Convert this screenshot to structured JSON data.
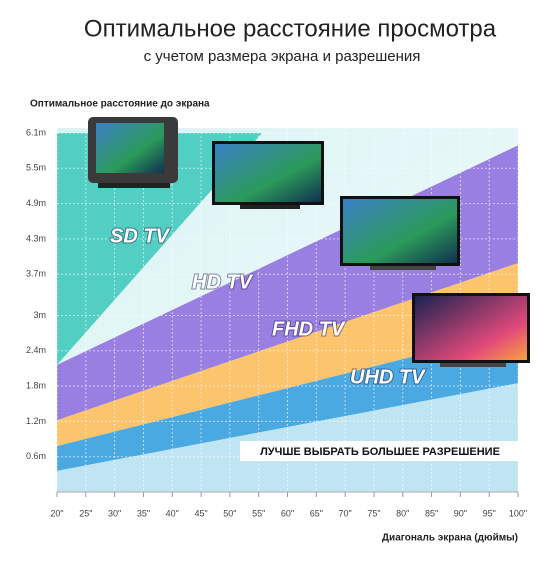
{
  "chart_data": {
    "type": "band",
    "title": "Оптимальное расстояние просмотра",
    "subtitle": "с учетом размера экрана и разрешения",
    "y_label": "Оптимальное расстояние до экрана",
    "x_label": "Диагональ экрана (дюймы)",
    "annotation": "ЛУЧШЕ  ВЫБРАТЬ БОЛЬШЕЕ РАЗРЕШЕНИЕ",
    "xlim": [
      20,
      100
    ],
    "ylim": [
      0,
      6.1
    ],
    "xticks": [
      {
        "value": 20,
        "label": "20\""
      },
      {
        "value": 25,
        "label": "25\""
      },
      {
        "value": 30,
        "label": "30\""
      },
      {
        "value": 35,
        "label": "35\""
      },
      {
        "value": 40,
        "label": "40\""
      },
      {
        "value": 45,
        "label": "45\""
      },
      {
        "value": 50,
        "label": "50\""
      },
      {
        "value": 55,
        "label": "55\""
      },
      {
        "value": 60,
        "label": "60\""
      },
      {
        "value": 65,
        "label": "65\""
      },
      {
        "value": 70,
        "label": "70\""
      },
      {
        "value": 75,
        "label": "75\""
      },
      {
        "value": 80,
        "label": "80\""
      },
      {
        "value": 85,
        "label": "85\""
      },
      {
        "value": 90,
        "label": "90\""
      },
      {
        "value": 95,
        "label": "95\""
      },
      {
        "value": 100,
        "label": "100\""
      }
    ],
    "yticks": [
      {
        "value": 0.6,
        "label": "0.6m"
      },
      {
        "value": 1.2,
        "label": "1.2m"
      },
      {
        "value": 1.8,
        "label": "1.8m"
      },
      {
        "value": 2.4,
        "label": "2.4m"
      },
      {
        "value": 3,
        "label": "3m"
      },
      {
        "value": 3.7,
        "label": "3.7m"
      },
      {
        "value": 4.3,
        "label": "4.3m"
      },
      {
        "value": 4.9,
        "label": "4.9m"
      },
      {
        "value": 5.5,
        "label": "5.5m"
      },
      {
        "value": 6.1,
        "label": "6.1m"
      }
    ],
    "series": [
      {
        "name": "SD TV",
        "color": "#52cfc2",
        "x": [
          20,
          55.6
        ],
        "lower": [
          2.16,
          6.1
        ]
      },
      {
        "name": "HD TV",
        "color": "#9a7fe2",
        "x": [
          20,
          100
        ],
        "upper": [
          2.16,
          5.89
        ],
        "lower": [
          1.22,
          3.89
        ]
      },
      {
        "name": "FHD TV",
        "color": "#fcc46c",
        "x": [
          20,
          100
        ],
        "upper": [
          1.22,
          3.89
        ],
        "lower": [
          0.78,
          2.75
        ]
      },
      {
        "name": "UHD TV",
        "color": "#4ba9e2",
        "x": [
          20,
          100
        ],
        "upper": [
          0.78,
          2.75
        ],
        "lower": [
          0.36,
          1.85
        ]
      }
    ]
  }
}
